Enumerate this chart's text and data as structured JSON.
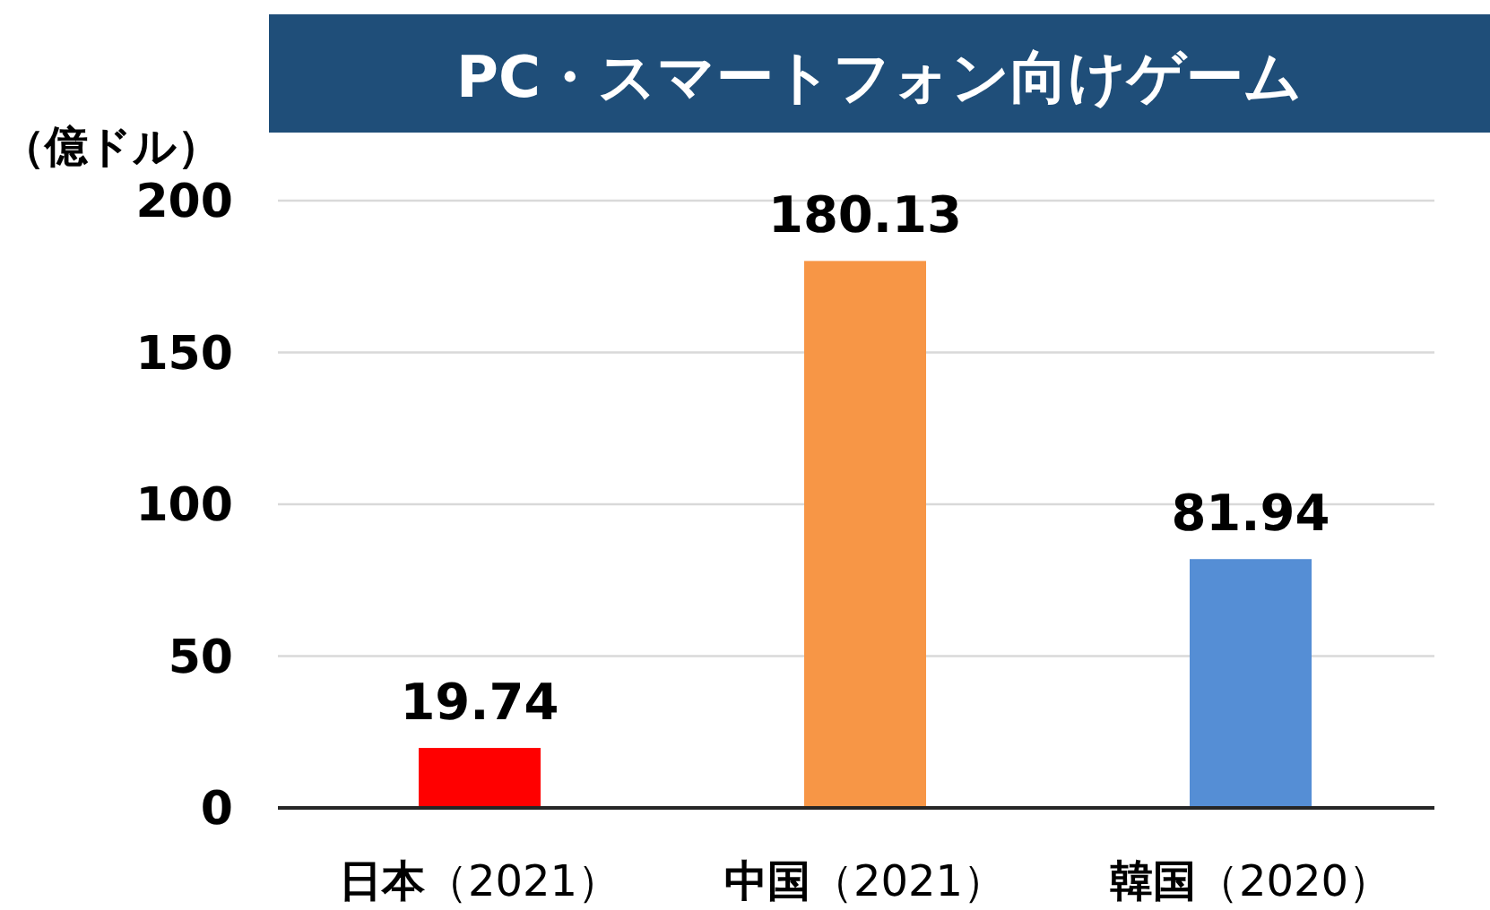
{
  "chart_data": {
    "type": "bar",
    "title": "PC・スマートフォン向けゲーム",
    "ylabel": "（億ドル）",
    "categories": [
      "**日本**（2021）",
      "**中国**（2021）",
      "**韓国**（2020）"
    ],
    "values": [
      19.74,
      180.13,
      81.94
    ],
    "colors": [
      "#ff0000",
      "#f79646",
      "#558ed5"
    ],
    "ylim": [
      0,
      200
    ],
    "yticks": [
      0,
      50,
      100,
      150,
      200
    ],
    "grid": "y",
    "data_labels": true
  }
}
